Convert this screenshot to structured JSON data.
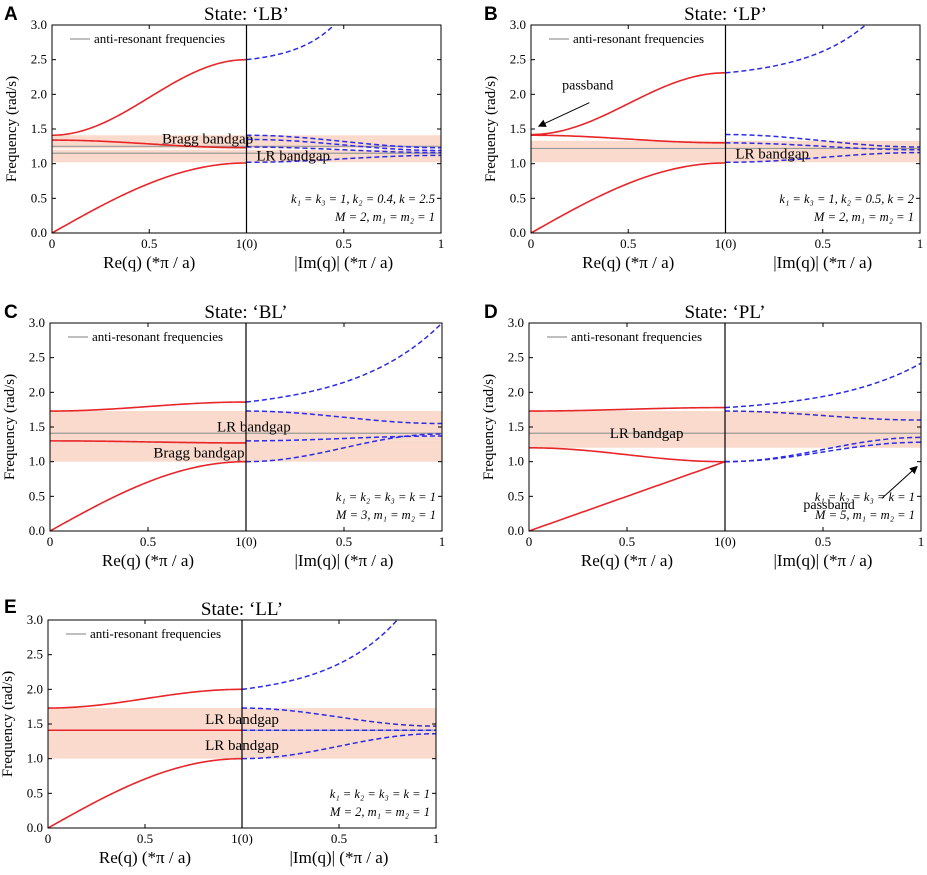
{
  "chart_data": [
    {
      "letter": "A",
      "title": "State: ‘LB’",
      "type": "line",
      "ylabel": "Frequency (rad/s)",
      "xlabel_left": "Re(q) (*π / a)",
      "xlabel_right": "|Im(q)| (*π / a)",
      "ylim": [
        0,
        3
      ],
      "yticks": [
        "0.0",
        "0.5",
        "1.0",
        "1.5",
        "2.0",
        "2.5",
        "3.0"
      ],
      "xticks": [
        "0",
        "0.5",
        "1(0)",
        "0.5",
        "1"
      ],
      "legend": "anti-resonant frequencies",
      "params": [
        "k₁ = k₃ = 1, k₂ = 0.4, k = 2.5",
        "M = 2, m₁ = m₂ = 1"
      ],
      "antiresonance": [
        1.25,
        1.15
      ],
      "bands": [
        {
          "y0": 1.22,
          "y1": 1.41,
          "label": "Bragg bandgap",
          "lx": 0.4,
          "ly": 1.36
        },
        {
          "y0": 1.02,
          "y1": 1.2,
          "label": "LR bandgap",
          "lx": 0.62,
          "ly": 1.12
        }
      ],
      "real_curves": [
        {
          "name": "acoustic",
          "y0": 0.0,
          "y1": 1.01,
          "shape": "acoustic"
        },
        {
          "name": "middle",
          "y0": 1.34,
          "y1": 1.23,
          "shape": "smooth"
        },
        {
          "name": "upper",
          "y0": 1.41,
          "y1": 2.5,
          "shape": "smooth"
        }
      ],
      "imag_curves": [
        {
          "name": "evanescent-upper",
          "y0": 2.5,
          "y1": 3.0,
          "x1": 0.45,
          "shape": "rise"
        },
        {
          "name": "evanescent-mid-1",
          "y0": 1.41,
          "y1": 1.23,
          "x1": 1.0,
          "shape": "smooth"
        },
        {
          "name": "evanescent-mid-2",
          "y0": 1.35,
          "y1": 1.19,
          "x1": 1.0,
          "shape": "smooth"
        },
        {
          "name": "evanescent-mid-3",
          "y0": 1.24,
          "y1": 1.16,
          "x1": 1.0,
          "shape": "smooth"
        },
        {
          "name": "evanescent-low",
          "y0": 1.02,
          "y1": 1.12,
          "x1": 1.0,
          "shape": "smooth"
        }
      ],
      "annotations": []
    },
    {
      "letter": "B",
      "title": "State: ‘LP’",
      "type": "line",
      "ylabel": "Frequency (rad/s)",
      "xlabel_left": "Re(q) (*π / a)",
      "xlabel_right": "|Im(q)| (*π / a)",
      "ylim": [
        0,
        3
      ],
      "yticks": [
        "0.0",
        "0.5",
        "1.0",
        "1.5",
        "2.0",
        "2.5",
        "3.0"
      ],
      "xticks": [
        "0",
        "0.5",
        "1(0)",
        "0.5",
        "1"
      ],
      "legend": "anti-resonant frequencies",
      "params": [
        "k₁ = k₃ = 1, k₂ = 0.5, k = 2",
        "M = 2, m₁ = m₂ = 1"
      ],
      "antiresonance": [
        1.22
      ],
      "bands": [
        {
          "y0": 1.02,
          "y1": 1.33,
          "label": "LR bandgap",
          "lx": 0.62,
          "ly": 1.15
        }
      ],
      "real_curves": [
        {
          "name": "acoustic",
          "y0": 0.0,
          "y1": 1.01,
          "shape": "acoustic"
        },
        {
          "name": "middle",
          "y0": 1.41,
          "y1": 1.3,
          "shape": "smooth"
        },
        {
          "name": "upper",
          "y0": 1.42,
          "y1": 2.31,
          "shape": "smooth"
        }
      ],
      "imag_curves": [
        {
          "name": "evanescent-upper",
          "y0": 2.31,
          "y1": 3.0,
          "x1": 0.72,
          "shape": "rise"
        },
        {
          "name": "evanescent-mid-1",
          "y0": 1.42,
          "y1": 1.24,
          "x1": 1.0,
          "shape": "smooth"
        },
        {
          "name": "evanescent-mid-2",
          "y0": 1.3,
          "y1": 1.2,
          "x1": 1.0,
          "shape": "smooth"
        },
        {
          "name": "evanescent-low",
          "y0": 1.02,
          "y1": 1.16,
          "x1": 1.0,
          "shape": "smooth"
        }
      ],
      "annotations": [
        {
          "text": "passband",
          "tx": 0.08,
          "ty": 2.07,
          "ax": 0.15,
          "ay": 1.88,
          "hx": 0.02,
          "hy": 1.54
        }
      ]
    },
    {
      "letter": "C",
      "title": "State: ‘BL’",
      "type": "line",
      "ylabel": "Frequency (rad/s)",
      "xlabel_left": "Re(q) (*π / a)",
      "xlabel_right": "|Im(q)| (*π / a)",
      "ylim": [
        0,
        3
      ],
      "yticks": [
        "0.0",
        "0.5",
        "1.0",
        "1.5",
        "2.0",
        "2.5",
        "3.0"
      ],
      "xticks": [
        "0",
        "0.5",
        "1(0)",
        "0.5",
        "1"
      ],
      "legend": "anti-resonant frequencies",
      "params": [
        "k₁ = k₂ = k₃ = k = 1",
        "M = 3, m₁ = m₂ = 1"
      ],
      "antiresonance": [
        1.41
      ],
      "bands": [
        {
          "y0": 1.3,
          "y1": 1.73,
          "label": "LR bandgap",
          "lx": 0.52,
          "ly": 1.51
        },
        {
          "y0": 1.0,
          "y1": 1.3,
          "label": "Bragg bandgap",
          "lx": 0.38,
          "ly": 1.13
        }
      ],
      "real_curves": [
        {
          "name": "acoustic",
          "y0": 0.0,
          "y1": 1.0,
          "shape": "acoustic"
        },
        {
          "name": "middle",
          "y0": 1.3,
          "y1": 1.27,
          "shape": "smooth"
        },
        {
          "name": "upper",
          "y0": 1.73,
          "y1": 1.86,
          "shape": "smooth"
        }
      ],
      "imag_curves": [
        {
          "name": "evanescent-upper",
          "y0": 1.86,
          "y1": 3.0,
          "x1": 1.0,
          "shape": "rise"
        },
        {
          "name": "evanescent-mid-1",
          "y0": 1.73,
          "y1": 1.55,
          "x1": 1.0,
          "shape": "smooth"
        },
        {
          "name": "evanescent-mid-2",
          "y0": 1.3,
          "y1": 1.37,
          "x1": 1.0,
          "shape": "smooth"
        },
        {
          "name": "evanescent-low",
          "y0": 1.0,
          "y1": 1.4,
          "x1": 1.0,
          "shape": "smooth"
        }
      ],
      "annotations": []
    },
    {
      "letter": "D",
      "title": "State: ‘PL’",
      "type": "line",
      "ylabel": "Frequency (rad/s)",
      "xlabel_left": "Re(q) (*π / a)",
      "xlabel_right": "|Im(q)| (*π / a)",
      "ylim": [
        0,
        3
      ],
      "yticks": [
        "0.0",
        "0.5",
        "1.0",
        "1.5",
        "2.0",
        "2.5",
        "3.0"
      ],
      "xticks": [
        "0",
        "0.5",
        "1(0)",
        "0.5",
        "1"
      ],
      "legend": "anti-resonant frequencies",
      "params": [
        "k₁ = k₂ = k₃ = k = 1",
        "M = 5, m₁ = m₂ = 1"
      ],
      "antiresonance": [
        1.41
      ],
      "bands": [
        {
          "y0": 1.2,
          "y1": 1.73,
          "label": "LR bandgap",
          "lx": 0.3,
          "ly": 1.41
        }
      ],
      "real_curves": [
        {
          "name": "acoustic",
          "y0": 0.0,
          "y1": 1.0,
          "shape": "linear"
        },
        {
          "name": "middle",
          "y0": 1.2,
          "y1": 1.0,
          "shape": "smooth"
        },
        {
          "name": "upper",
          "y0": 1.73,
          "y1": 1.78,
          "shape": "smooth"
        }
      ],
      "imag_curves": [
        {
          "name": "evanescent-upper",
          "y0": 1.78,
          "y1": 2.42,
          "x1": 1.0,
          "shape": "rise"
        },
        {
          "name": "evanescent-mid-1",
          "y0": 1.73,
          "y1": 1.6,
          "x1": 1.0,
          "shape": "smooth"
        },
        {
          "name": "evanescent-mid-2",
          "y0": 1.0,
          "y1": 1.35,
          "x1": 1.0,
          "shape": "smooth"
        },
        {
          "name": "evanescent-low",
          "y0": 1.0,
          "y1": 1.28,
          "x1": 1.0,
          "shape": "smooth"
        }
      ],
      "annotations": [
        {
          "text": "passband",
          "tx": 0.7,
          "ty": 0.32,
          "ax": 0.9,
          "ay": 0.47,
          "hx": 0.99,
          "hy": 0.93
        }
      ]
    },
    {
      "letter": "E",
      "title": "State: ‘LL’",
      "type": "line",
      "ylabel": "Frequency (rad/s)",
      "xlabel_left": "Re(q) (*π / a)",
      "xlabel_right": "|Im(q)| (*π / a)",
      "ylim": [
        0,
        3
      ],
      "yticks": [
        "0.0",
        "0.5",
        "1.0",
        "1.5",
        "2.0",
        "2.5",
        "3.0"
      ],
      "xticks": [
        "0",
        "0.5",
        "1(0)",
        "0.5",
        "1"
      ],
      "legend": "anti-resonant frequencies",
      "params": [
        "k₁ = k₂ = k₃ = k = 1",
        "M = 2, m₁ = m₂ = 1"
      ],
      "antiresonance": [
        1.41
      ],
      "bands": [
        {
          "y0": 1.41,
          "y1": 1.73,
          "label": "LR bandgap",
          "lx": 0.5,
          "ly": 1.57
        },
        {
          "y0": 1.0,
          "y1": 1.41,
          "label": "LR bandgap",
          "lx": 0.5,
          "ly": 1.2
        }
      ],
      "real_curves": [
        {
          "name": "acoustic",
          "y0": 0.0,
          "y1": 1.0,
          "shape": "acoustic"
        },
        {
          "name": "middle",
          "y0": 1.41,
          "y1": 1.41,
          "shape": "smooth"
        },
        {
          "name": "upper",
          "y0": 1.73,
          "y1": 2.0,
          "shape": "smooth"
        }
      ],
      "imag_curves": [
        {
          "name": "evanescent-upper",
          "y0": 2.0,
          "y1": 3.0,
          "x1": 0.8,
          "shape": "rise"
        },
        {
          "name": "evanescent-mid-1",
          "y0": 1.73,
          "y1": 1.47,
          "x1": 1.0,
          "shape": "smooth"
        },
        {
          "name": "evanescent-mid-2",
          "y0": 1.41,
          "y1": 1.41,
          "x1": 1.0,
          "shape": "smooth"
        },
        {
          "name": "evanescent-low",
          "y0": 1.0,
          "y1": 1.36,
          "x1": 1.0,
          "shape": "smooth"
        }
      ],
      "annotations": []
    }
  ],
  "colors": {
    "band": "#f9d6c6",
    "real": "#e8262a",
    "imag": "#2b2be8",
    "antiresonance": "#999999",
    "axis": "#000000"
  }
}
